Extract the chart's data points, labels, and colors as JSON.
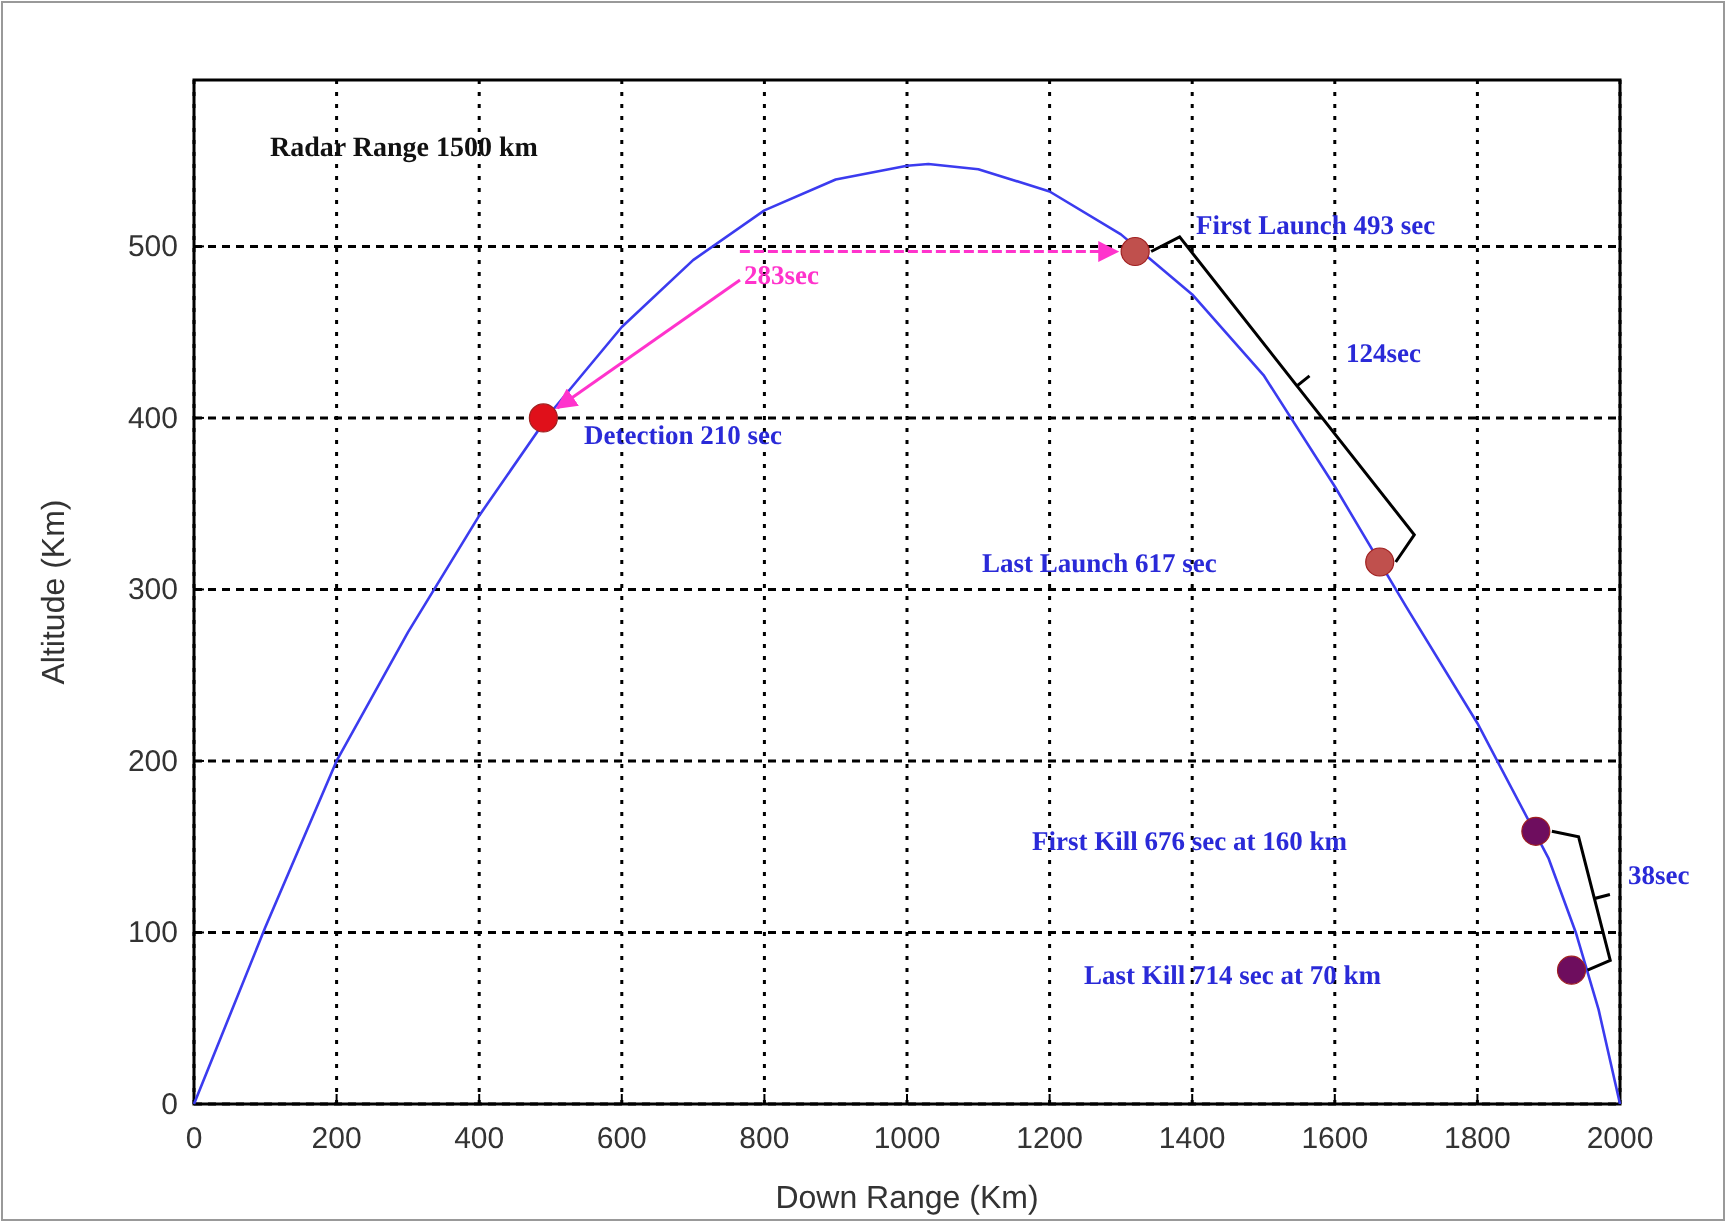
{
  "chart_data": {
    "type": "line",
    "xlabel": "Down Range (Km)",
    "ylabel": "Altitude (Km)",
    "xlim": [
      0,
      2000
    ],
    "ylim": [
      0,
      597
    ],
    "xticks": [
      0,
      200,
      400,
      600,
      800,
      1000,
      1200,
      1400,
      1600,
      1800,
      2000
    ],
    "yticks": [
      0,
      100,
      200,
      300,
      400,
      500
    ],
    "grid": true,
    "series": [
      {
        "color": "#3b3bef",
        "marker": "none",
        "x": [
          0,
          100,
          200,
          300,
          400,
          500,
          600,
          700,
          800,
          900,
          1000,
          1030,
          1100,
          1200,
          1300,
          1400,
          1500,
          1600,
          1700,
          1800,
          1900,
          1938,
          1970,
          2000
        ],
        "values": [
          0,
          103,
          200,
          275,
          343,
          403,
          453,
          492,
          521,
          539,
          547,
          548,
          545,
          532,
          507,
          472,
          425,
          360,
          290,
          222,
          143,
          100,
          55,
          0
        ]
      },
      {
        "type": "scatter",
        "marker": "circle",
        "x": [
          490,
          1320,
          1663,
          1882,
          1932
        ],
        "values": [
          400,
          497,
          316,
          159,
          78
        ],
        "colors": [
          "#e0101a",
          "#c0504d",
          "#c0504d",
          "#6e0d5e",
          "#6e0d5e"
        ]
      }
    ],
    "annotations": [
      "Radar Range 1500 km",
      {
        "text": "283sec",
        "x": 490,
        "y": 400
      },
      "Detection 210 sec",
      "First Launch 493 sec",
      "124sec",
      "Last Launch 617 sec",
      "First Kill 676 sec at 160 km",
      {
        "text": "38sec",
        "x": 1882,
        "y": 159
      },
      "Last Kill 714 sec at 70 km"
    ]
  }
}
